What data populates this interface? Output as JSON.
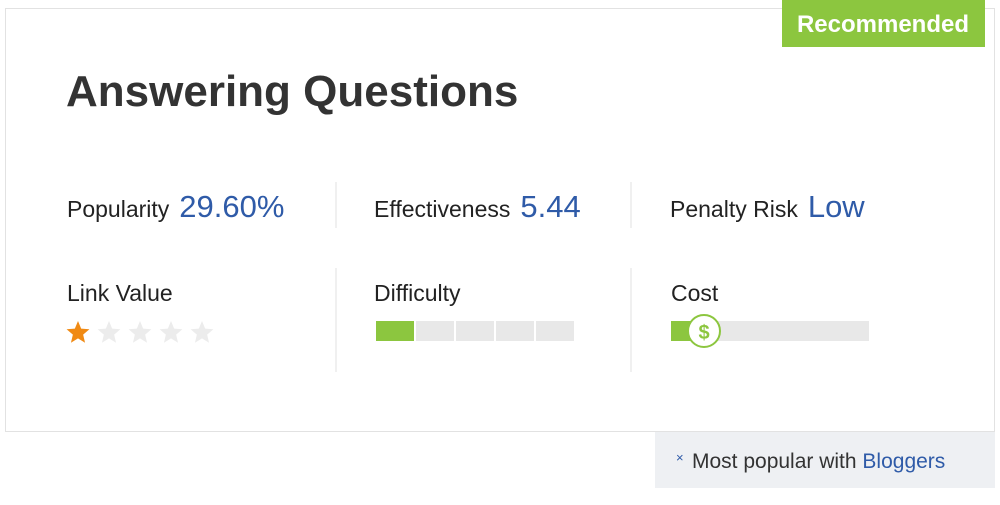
{
  "badge": "Recommended",
  "title": "Answering Questions",
  "metrics": [
    {
      "label": "Popularity",
      "value": "29.60%"
    },
    {
      "label": "Effectiveness",
      "value": "5.44"
    },
    {
      "label": "Penalty Risk",
      "value": "Low"
    }
  ],
  "ratings": {
    "link_value": {
      "label": "Link Value",
      "value": 1,
      "max": 5
    },
    "difficulty": {
      "label": "Difficulty",
      "value": 1,
      "max": 5
    },
    "cost": {
      "label": "Cost",
      "value": 1,
      "max": 6
    }
  },
  "footer": {
    "text": "Most popular with",
    "audience": "Bloggers"
  }
}
